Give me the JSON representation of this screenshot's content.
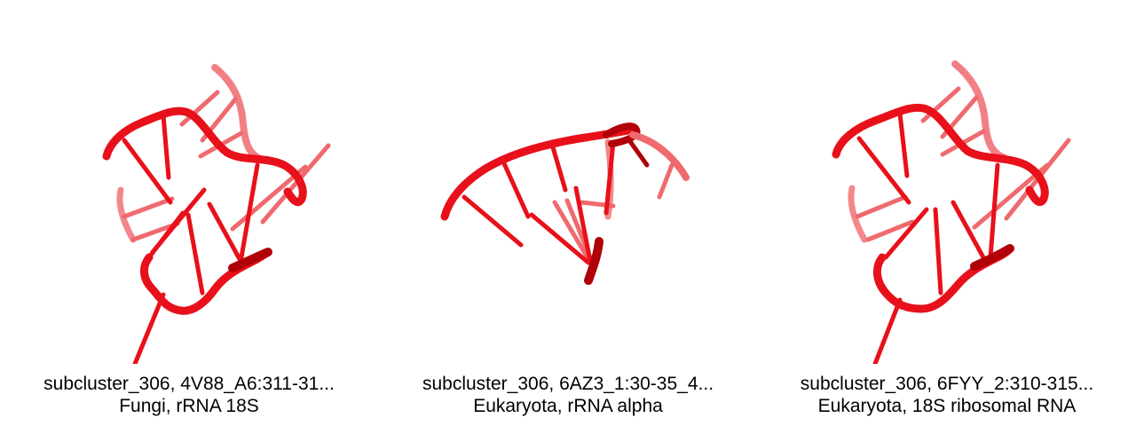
{
  "colors": {
    "background": "#ffffff",
    "strand_main": "#e8101a",
    "strand_dark": "#b00008",
    "strand_faded": "#ef6a6e",
    "caption_text": "#000000"
  },
  "panels": [
    {
      "title": "subcluster_306, 4V88_A6:311-31...",
      "subtitle": "Fungi, rRNA 18S"
    },
    {
      "title": "subcluster_306, 6AZ3_1:30-35_4...",
      "subtitle": "Eukaryota, rRNA alpha"
    },
    {
      "title": "subcluster_306, 6FYY_2:310-315...",
      "subtitle": "Eukaryota, 18S ribosomal RNA"
    }
  ]
}
